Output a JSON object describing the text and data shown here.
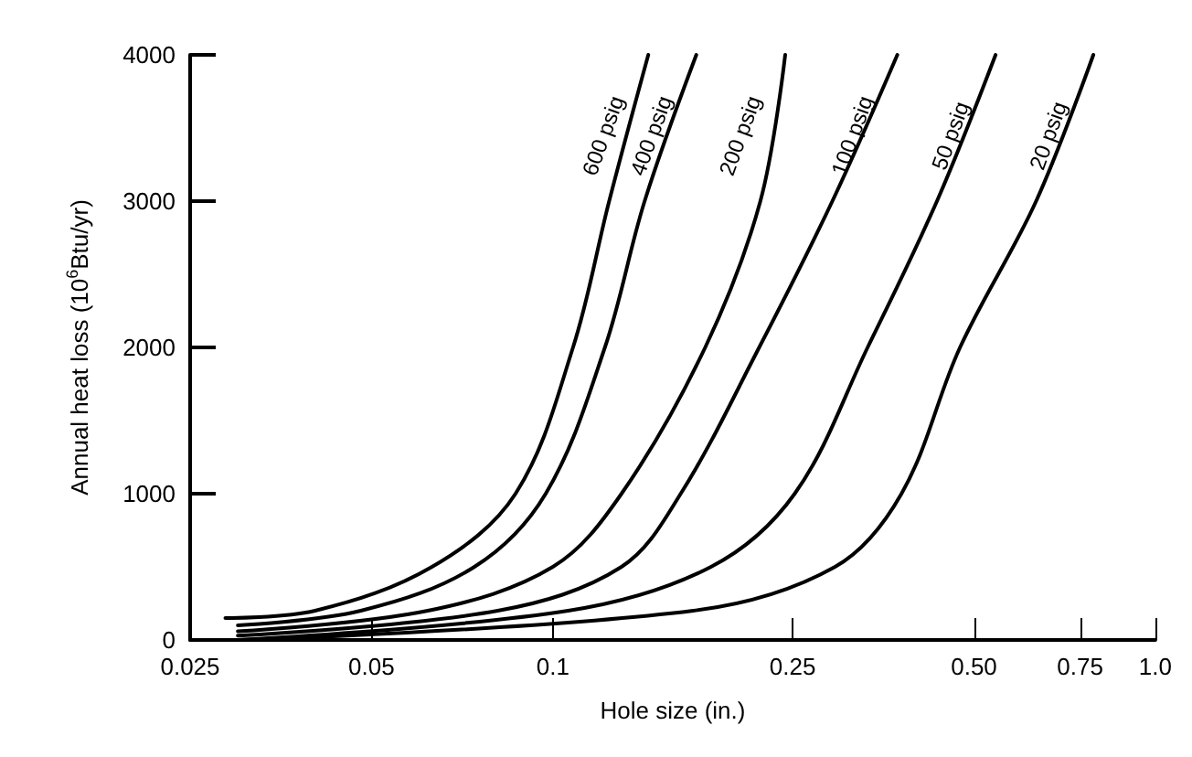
{
  "chart_data": {
    "type": "line",
    "xlabel": "Hole size (in.)",
    "ylabel": "Annual heat loss (10$^{6}$Btu/yr)",
    "log": "x",
    "xlim": [
      0.025,
      1.0
    ],
    "xticks": [
      0.025,
      0.05,
      0.1,
      0.25,
      {
        "value": 0.5,
        "label": "0.50"
      },
      0.75,
      {
        "value": 1.0,
        "label": "1.0"
      }
    ],
    "ylim": [
      0,
      4000
    ],
    "yticks": [
      0,
      1000,
      2000,
      3000,
      4000
    ],
    "grid": false,
    "legend": false,
    "marker": "none",
    "line_style": "solid",
    "series": [
      {
        "name": "600 psig",
        "color": "#000000",
        "x": [
          0.0286,
          0.0403,
          0.063,
          0.0867,
          0.108,
          0.124,
          0.144
        ],
        "values": [
          150,
          200,
          500,
          1000,
          2000,
          3000,
          4000
        ]
      },
      {
        "name": "400 psig",
        "color": "#000000",
        "x": [
          0.03,
          0.048,
          0.0741,
          0.0973,
          0.122,
          0.142,
          0.173
        ],
        "values": [
          100,
          200,
          500,
          1000,
          2000,
          3000,
          4000
        ]
      },
      {
        "name": "200 psig",
        "color": "#000000",
        "x": [
          0.03,
          0.062,
          0.1,
          0.13,
          0.179,
          0.221,
          0.243
        ],
        "values": [
          60,
          200,
          500,
          1000,
          2000,
          3000,
          4000
        ]
      },
      {
        "name": "100 psig",
        "color": "#000000",
        "x": [
          0.03,
          0.081,
          0.13,
          0.163,
          0.22,
          0.291,
          0.373
        ],
        "values": [
          30,
          200,
          500,
          1000,
          2000,
          3000,
          4000
        ]
      },
      {
        "name": "50 psig",
        "color": "#000000",
        "x": [
          0.03,
          0.106,
          0.183,
          0.252,
          0.333,
          0.434,
          0.543
        ],
        "values": [
          0,
          200,
          500,
          1000,
          2000,
          3000,
          4000
        ]
      },
      {
        "name": "20 psig",
        "color": "#000000",
        "x": [
          0.03,
          0.171,
          0.294,
          0.379,
          0.474,
          0.634,
          0.789
        ],
        "values": [
          0,
          200,
          500,
          1000,
          2000,
          3000,
          4000
        ]
      }
    ]
  }
}
